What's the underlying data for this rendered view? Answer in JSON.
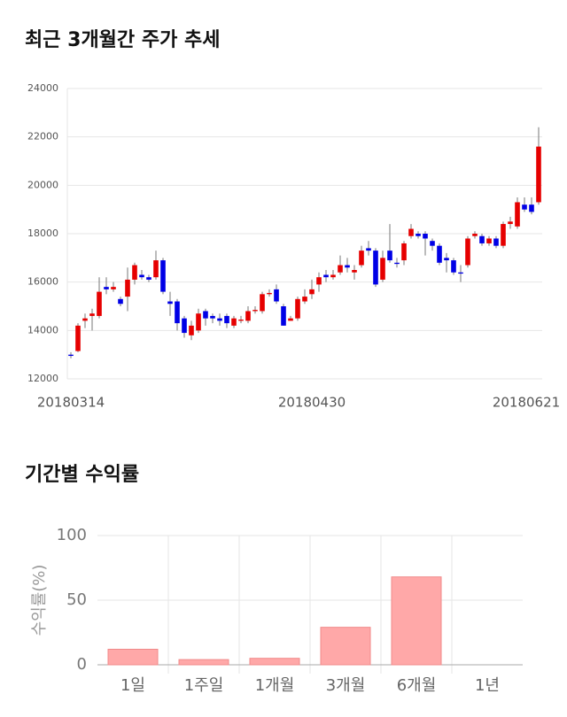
{
  "chart_data": [
    {
      "type": "candlestick",
      "title": "최근 3개월간 주가 추세",
      "categories": [
        "20180314",
        null,
        null,
        null,
        null,
        null,
        null,
        null,
        null,
        null,
        null,
        null,
        null,
        null,
        null,
        null,
        null,
        null,
        null,
        null,
        null,
        null,
        null,
        null,
        null,
        null,
        null,
        null,
        null,
        null,
        null,
        null,
        null,
        null,
        "20180430",
        null,
        null,
        null,
        null,
        null,
        null,
        null,
        null,
        null,
        null,
        null,
        null,
        null,
        null,
        null,
        null,
        null,
        null,
        null,
        null,
        null,
        null,
        null,
        null,
        null,
        null,
        null,
        null,
        null,
        null,
        null,
        "20180621"
      ],
      "open": [
        13000,
        13150,
        14400,
        14600,
        14600,
        15800,
        15700,
        15300,
        15400,
        16100,
        16300,
        16200,
        16200,
        16900,
        15200,
        15200,
        14500,
        13800,
        14000,
        14800,
        14600,
        14500,
        14600,
        14200,
        14400,
        14400,
        14800,
        14800,
        15500,
        15700,
        15000,
        14400,
        14500,
        15200,
        15500,
        15900,
        16300,
        16200,
        16400,
        16700,
        16400,
        16700,
        17400,
        17300,
        16100,
        17300,
        16800,
        16900,
        17900,
        18000,
        18000,
        17700,
        17500,
        17000,
        16900,
        16400,
        16700,
        17900,
        17900,
        17600,
        17800,
        17500,
        18400,
        18300,
        19200,
        19200,
        19300
      ],
      "high": [
        13100,
        14300,
        14700,
        14900,
        16200,
        16200,
        16000,
        15400,
        16600,
        16800,
        16500,
        16300,
        17300,
        17000,
        15600,
        15300,
        14600,
        14400,
        14900,
        14900,
        14700,
        14700,
        14700,
        14600,
        14600,
        15000,
        15000,
        15600,
        15700,
        15900,
        15100,
        14600,
        15400,
        15700,
        16100,
        16400,
        16500,
        16500,
        17100,
        17000,
        16700,
        17500,
        17700,
        17400,
        17300,
        18400,
        17000,
        17700,
        18400,
        18100,
        18100,
        17800,
        17600,
        17200,
        17000,
        16700,
        17900,
        18100,
        18000,
        17900,
        17900,
        18500,
        18700,
        19500,
        19500,
        19500,
        22400
      ],
      "low": [
        12850,
        13100,
        14100,
        14000,
        14500,
        15500,
        15600,
        15000,
        14800,
        15900,
        16100,
        16000,
        16100,
        15500,
        14600,
        14000,
        13700,
        13600,
        13900,
        14200,
        14300,
        14200,
        14100,
        14100,
        14300,
        14300,
        14700,
        14700,
        15400,
        15100,
        14200,
        14400,
        14400,
        15100,
        15300,
        15600,
        16000,
        16100,
        16300,
        16400,
        16100,
        16600,
        17100,
        15800,
        16000,
        16800,
        16600,
        16700,
        17800,
        17800,
        17100,
        17300,
        16700,
        16400,
        16300,
        16000,
        16600,
        17800,
        17500,
        17500,
        17400,
        17400,
        18200,
        18200,
        18900,
        18800,
        19200
      ],
      "close": [
        12950,
        14200,
        14500,
        14700,
        15600,
        15700,
        15800,
        15100,
        16100,
        16700,
        16200,
        16100,
        16900,
        15600,
        15100,
        14300,
        13900,
        14200,
        14700,
        14500,
        14500,
        14400,
        14300,
        14500,
        14450,
        14800,
        14850,
        15500,
        15550,
        15200,
        14200,
        14500,
        15300,
        15400,
        15700,
        16200,
        16200,
        16300,
        16700,
        16600,
        16500,
        17300,
        17300,
        15900,
        17000,
        16900,
        16750,
        17600,
        18200,
        17900,
        17800,
        17500,
        16800,
        16900,
        16400,
        16350,
        17800,
        18000,
        17600,
        17800,
        17500,
        18400,
        18500,
        19300,
        19000,
        18900,
        21600
      ],
      "up_color": "#e60000",
      "down_color": "#0000e6",
      "ylim": [
        12000,
        24000
      ],
      "yticks": [
        12000,
        14000,
        16000,
        18000,
        20000,
        22000,
        24000
      ],
      "grid": true
    },
    {
      "type": "bar",
      "title": "기간별 수익률",
      "y_label": "수익률(%)",
      "categories": [
        "1일",
        "1주일",
        "1개월",
        "3개월",
        "6개월",
        "1년"
      ],
      "values": [
        12,
        4,
        5,
        29,
        68,
        null
      ],
      "color": "#ffa8a8",
      "ylim": [
        0,
        100
      ],
      "yticks": [
        0,
        50,
        100
      ],
      "grid": true
    }
  ]
}
